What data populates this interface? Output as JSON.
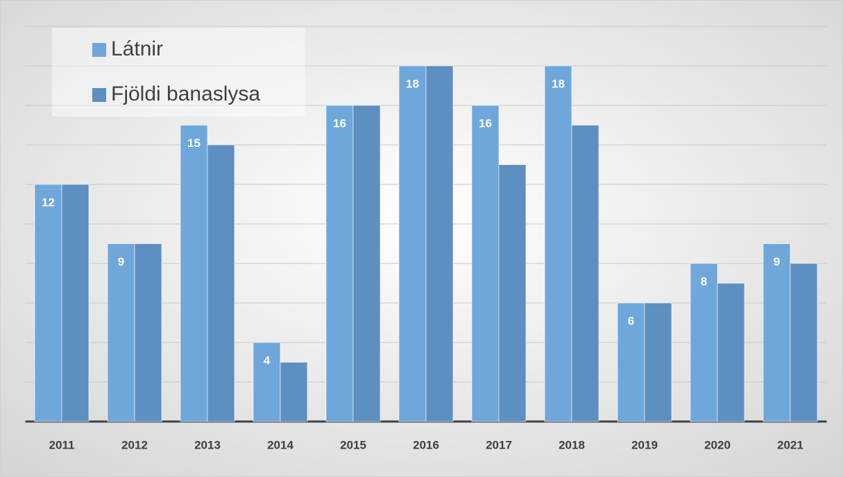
{
  "chart_data": {
    "type": "bar",
    "categories": [
      "2011",
      "2012",
      "2013",
      "2014",
      "2015",
      "2016",
      "2017",
      "2018",
      "2019",
      "2020",
      "2021"
    ],
    "series": [
      {
        "name": "Látnir",
        "color": "#6fa7db",
        "values": [
          12,
          9,
          15,
          4,
          16,
          18,
          16,
          18,
          6,
          8,
          9
        ]
      },
      {
        "name": "Fjöldi banaslysa",
        "color": "#5d8fc0",
        "values": [
          12,
          9,
          14,
          3,
          16,
          18,
          13,
          15,
          6,
          7,
          8
        ]
      }
    ],
    "data_labels_series": 0,
    "ylim": [
      0,
      20
    ],
    "yticks": [
      0,
      2,
      4,
      6,
      8,
      10,
      12,
      14,
      16,
      18,
      20
    ],
    "grid": true,
    "legend": "top-left"
  }
}
